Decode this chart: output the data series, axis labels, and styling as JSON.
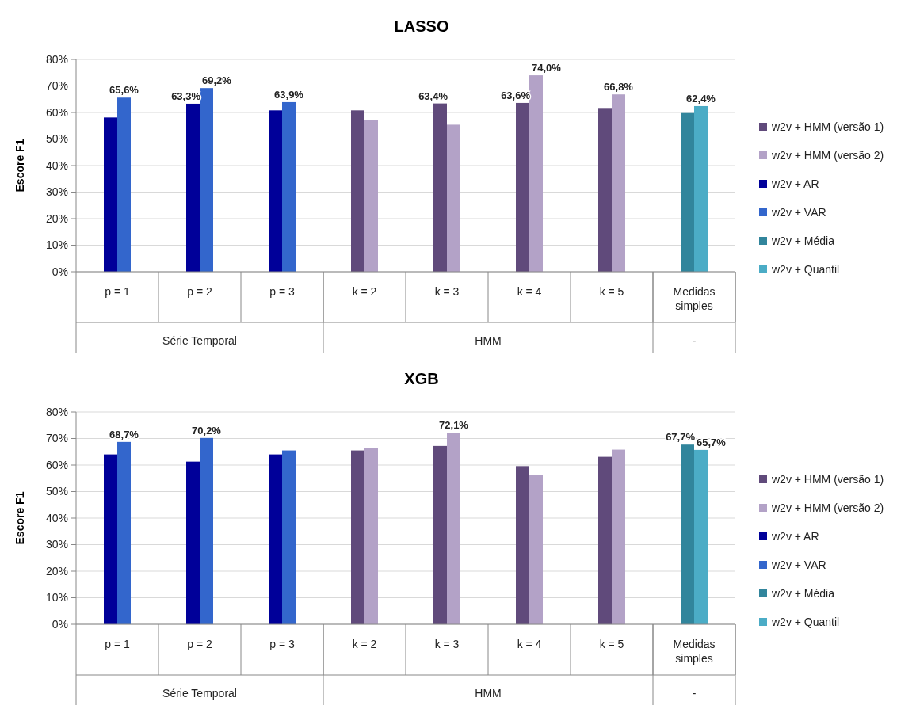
{
  "chart_data": [
    {
      "type": "bar",
      "title": "LASSO",
      "ylabel": "Escore F1",
      "categories": [
        "p = 1",
        "p = 2",
        "p = 3",
        "k = 2",
        "k = 3",
        "k = 4",
        "k = 5",
        "Medidas simples"
      ],
      "annotations": [
        "Série Temporal",
        "HMM",
        "-"
      ],
      "ylim": [
        0,
        80
      ],
      "yticks": [
        {
          "value": 0,
          "label": "0%"
        },
        {
          "value": 10,
          "label": "10%"
        },
        {
          "value": 20,
          "label": "20%"
        },
        {
          "value": 30,
          "label": "30%"
        },
        {
          "value": 40,
          "label": "40%"
        },
        {
          "value": 50,
          "label": "50%"
        },
        {
          "value": 60,
          "label": "60%"
        },
        {
          "value": 70,
          "label": "70%"
        },
        {
          "value": 80,
          "label": "80%"
        }
      ],
      "grid": "y",
      "legend": "right",
      "series": [
        {
          "name": "w2v + HMM (versão 1)",
          "color": "#604a7b",
          "values": [
            null,
            null,
            null,
            60.8,
            63.4,
            63.6,
            61.7,
            null
          ],
          "value_labels": [
            null,
            null,
            null,
            null,
            "63,4%",
            "63,6%",
            null,
            null
          ]
        },
        {
          "name": "w2v + HMM (versão 2)",
          "color": "#b3a2c7",
          "values": [
            null,
            null,
            null,
            57.1,
            55.4,
            74.0,
            66.8,
            null
          ],
          "value_labels": [
            null,
            null,
            null,
            null,
            null,
            "74,0%",
            "66,8%",
            null
          ]
        },
        {
          "name": "w2v + AR",
          "color": "#000099",
          "values": [
            58.1,
            63.3,
            60.8,
            null,
            null,
            null,
            null,
            null
          ],
          "value_labels": [
            null,
            "63,3%",
            null,
            null,
            null,
            null,
            null,
            null
          ]
        },
        {
          "name": "w2v + VAR",
          "color": "#3366cc",
          "values": [
            65.6,
            69.2,
            63.9,
            null,
            null,
            null,
            null,
            null
          ],
          "value_labels": [
            "65,6%",
            "69,2%",
            "63,9%",
            null,
            null,
            null,
            null,
            null
          ]
        },
        {
          "name": "w2v + Média",
          "color": "#31859c",
          "values": [
            null,
            null,
            null,
            null,
            null,
            null,
            null,
            59.8
          ],
          "value_labels": [
            null,
            null,
            null,
            null,
            null,
            null,
            null,
            null
          ]
        },
        {
          "name": "w2v + Quantil",
          "color": "#4bacc6",
          "values": [
            null,
            null,
            null,
            null,
            null,
            null,
            null,
            62.4
          ],
          "value_labels": [
            null,
            null,
            null,
            null,
            null,
            null,
            null,
            "62,4%"
          ]
        }
      ]
    },
    {
      "type": "bar",
      "title": "XGB",
      "ylabel": "Escore F1",
      "categories": [
        "p = 1",
        "p = 2",
        "p = 3",
        "k = 2",
        "k = 3",
        "k = 4",
        "k = 5",
        "Medidas simples"
      ],
      "annotations": [
        "Série Temporal",
        "HMM",
        "-"
      ],
      "ylim": [
        0,
        80
      ],
      "yticks": [
        {
          "value": 0,
          "label": "0%"
        },
        {
          "value": 10,
          "label": "10%"
        },
        {
          "value": 20,
          "label": "20%"
        },
        {
          "value": 30,
          "label": "30%"
        },
        {
          "value": 40,
          "label": "40%"
        },
        {
          "value": 50,
          "label": "50%"
        },
        {
          "value": 60,
          "label": "60%"
        },
        {
          "value": 70,
          "label": "70%"
        },
        {
          "value": 80,
          "label": "80%"
        }
      ],
      "grid": "y",
      "legend": "right",
      "series": [
        {
          "name": "w2v + HMM (versão 1)",
          "color": "#604a7b",
          "values": [
            null,
            null,
            null,
            65.5,
            67.2,
            59.6,
            63.1,
            null
          ],
          "value_labels": [
            null,
            null,
            null,
            null,
            null,
            null,
            null,
            null
          ]
        },
        {
          "name": "w2v + HMM (versão 2)",
          "color": "#b3a2c7",
          "values": [
            null,
            null,
            null,
            66.3,
            72.1,
            56.4,
            65.8,
            null
          ],
          "value_labels": [
            null,
            null,
            null,
            null,
            "72,1%",
            null,
            null,
            null
          ]
        },
        {
          "name": "w2v + AR",
          "color": "#000099",
          "values": [
            64.0,
            61.3,
            64.0,
            null,
            null,
            null,
            null,
            null
          ],
          "value_labels": [
            null,
            null,
            null,
            null,
            null,
            null,
            null,
            null
          ]
        },
        {
          "name": "w2v + VAR",
          "color": "#3366cc",
          "values": [
            68.7,
            70.2,
            65.5,
            null,
            null,
            null,
            null,
            null
          ],
          "value_labels": [
            "68,7%",
            "70,2%",
            null,
            null,
            null,
            null,
            null,
            null
          ]
        },
        {
          "name": "w2v + Média",
          "color": "#31859c",
          "values": [
            null,
            null,
            null,
            null,
            null,
            null,
            null,
            67.7
          ],
          "value_labels": [
            null,
            null,
            null,
            null,
            null,
            null,
            null,
            "67,7%"
          ]
        },
        {
          "name": "w2v + Quantil",
          "color": "#4bacc6",
          "values": [
            null,
            null,
            null,
            null,
            null,
            null,
            null,
            65.7
          ],
          "value_labels": [
            null,
            null,
            null,
            null,
            null,
            null,
            null,
            "65,7%"
          ]
        }
      ]
    }
  ]
}
